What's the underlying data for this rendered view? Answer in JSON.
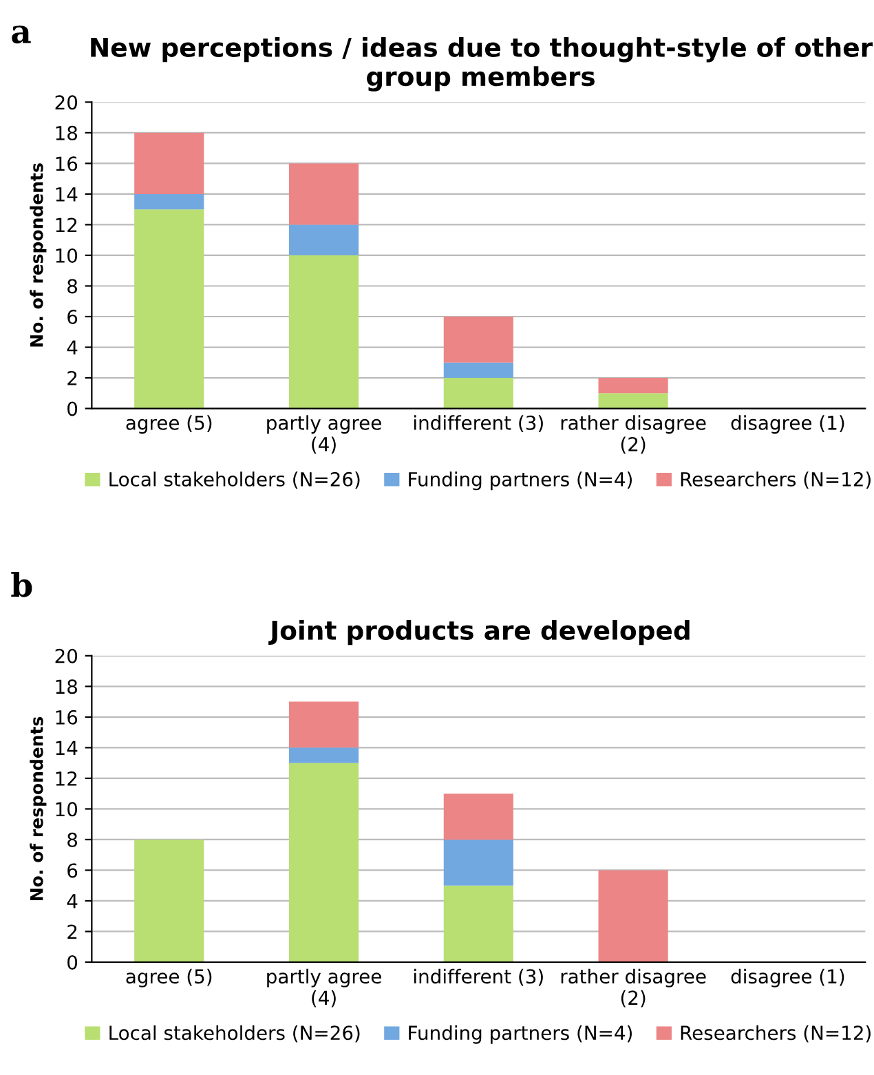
{
  "chart_data": [
    {
      "type": "bar",
      "stacked": true,
      "title": "New perceptions / ideas due to thought-style of other group members",
      "ylabel": "No. of respondents",
      "annotations": [
        "a"
      ],
      "categories": [
        "agree (5)",
        "partly agree (4)",
        "indifferent (3)",
        "rather disagree (2)",
        "disagree (1)"
      ],
      "series": [
        {
          "name": "Local stakeholders (N=26)",
          "color": "#b9de72",
          "values": [
            13,
            10,
            2,
            1,
            0
          ]
        },
        {
          "name": "Funding partners (N=4)",
          "color": "#72a8e0",
          "values": [
            1,
            2,
            1,
            0,
            0
          ]
        },
        {
          "name": "Researchers (N=12)",
          "color": "#ec8585",
          "values": [
            4,
            4,
            3,
            1,
            0
          ]
        }
      ],
      "ylim": [
        0,
        20
      ],
      "yticks": [
        0,
        2,
        4,
        6,
        8,
        10,
        12,
        14,
        16,
        18,
        20
      ],
      "grid": "y",
      "legend": "bottom"
    },
    {
      "type": "bar",
      "stacked": true,
      "title": "Joint products are developed",
      "ylabel": "No. of respondents",
      "annotations": [
        "b"
      ],
      "categories": [
        "agree (5)",
        "partly agree (4)",
        "indifferent (3)",
        "rather disagree (2)",
        "disagree (1)"
      ],
      "series": [
        {
          "name": "Local stakeholders (N=26)",
          "color": "#b9de72",
          "values": [
            8,
            13,
            5,
            0,
            0
          ]
        },
        {
          "name": "Funding partners (N=4)",
          "color": "#72a8e0",
          "values": [
            0,
            1,
            3,
            0,
            0
          ]
        },
        {
          "name": "Researchers (N=12)",
          "color": "#ec8585",
          "values": [
            0,
            3,
            3,
            6,
            0
          ]
        }
      ],
      "ylim": [
        0,
        20
      ],
      "yticks": [
        0,
        2,
        4,
        6,
        8,
        10,
        12,
        14,
        16,
        18,
        20
      ],
      "grid": "y",
      "legend": "bottom"
    }
  ]
}
